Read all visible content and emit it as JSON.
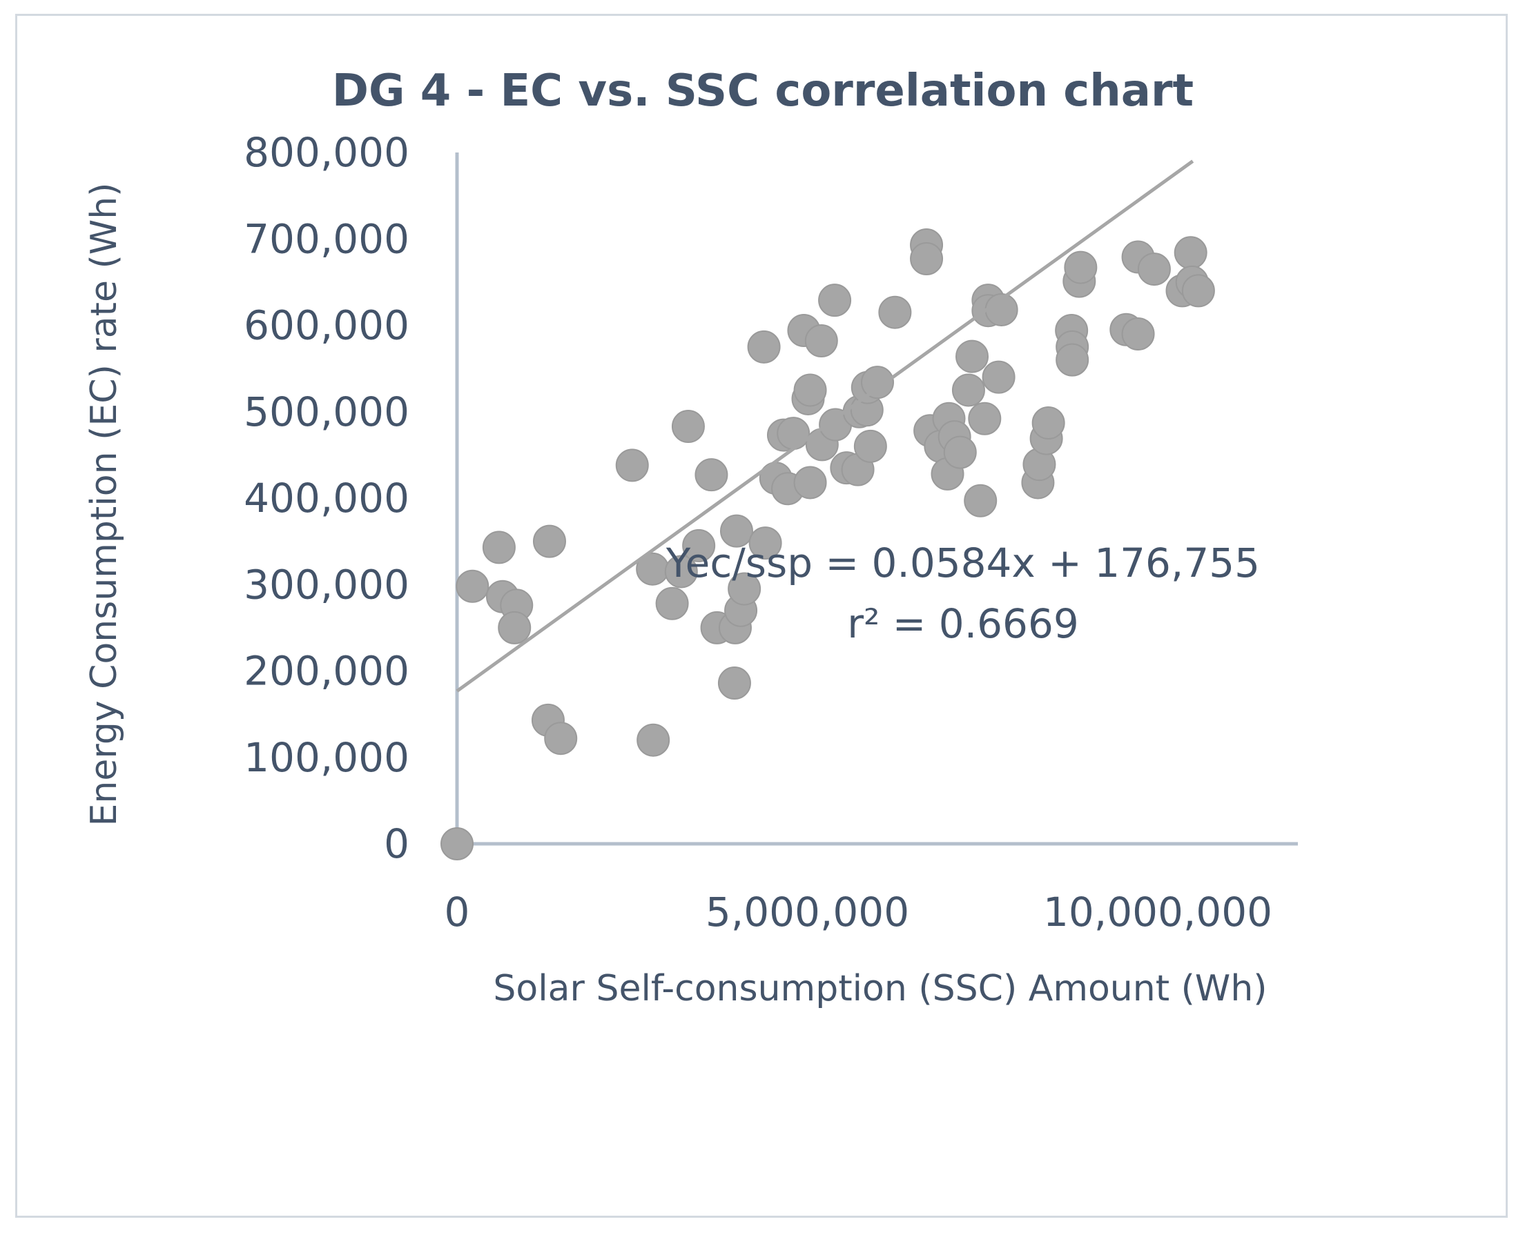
{
  "chart_data": {
    "type": "scatter",
    "title": "DG 4 - EC vs. SSC correlation chart",
    "xlabel": "Solar Self-consumption (SSC) Amount  (Wh)",
    "ylabel": "Energy Consumption (EC) rate (Wh)",
    "xlim": [
      0,
      12000000
    ],
    "ylim": [
      0,
      800000
    ],
    "x_ticks": [
      0,
      5000000,
      10000000
    ],
    "x_tick_labels": [
      "0",
      "5,000,000",
      "10,000,000"
    ],
    "y_ticks": [
      0,
      100000,
      200000,
      300000,
      400000,
      500000,
      600000,
      700000,
      800000
    ],
    "y_tick_labels": [
      "0",
      "100,000",
      "200,000",
      "300,000",
      "400,000",
      "500,000",
      "600,000",
      "700,000",
      "800,000"
    ],
    "grid": false,
    "legend": "none",
    "colors": {
      "marker": "#a6a6a6",
      "trendline": "#a6a6a6",
      "axis": "#b4bfcc",
      "text": "#44546a",
      "frame": "#d3d9e0"
    },
    "series": [
      {
        "name": "DG 4",
        "points": [
          [
            0,
            0
          ],
          [
            220000,
            298000
          ],
          [
            600000,
            343000
          ],
          [
            650000,
            286000
          ],
          [
            850000,
            276000
          ],
          [
            820000,
            250000
          ],
          [
            1320000,
            350000
          ],
          [
            1300000,
            143000
          ],
          [
            1480000,
            122000
          ],
          [
            2500000,
            438000
          ],
          [
            2800000,
            120000
          ],
          [
            2790000,
            318000
          ],
          [
            3200000,
            315000
          ],
          [
            3070000,
            278000
          ],
          [
            3300000,
            483000
          ],
          [
            3450000,
            345000
          ],
          [
            3630000,
            427000
          ],
          [
            3710000,
            250000
          ],
          [
            3990000,
            362000
          ],
          [
            3970000,
            250000
          ],
          [
            4050000,
            270000
          ],
          [
            4100000,
            295000
          ],
          [
            3960000,
            186000
          ],
          [
            4380000,
            575000
          ],
          [
            4400000,
            348000
          ],
          [
            4550000,
            423000
          ],
          [
            4660000,
            473000
          ],
          [
            4720000,
            411000
          ],
          [
            4800000,
            475000
          ],
          [
            4950000,
            594000
          ],
          [
            5010000,
            515000
          ],
          [
            5040000,
            525000
          ],
          [
            5040000,
            418000
          ],
          [
            5200000,
            582000
          ],
          [
            5210000,
            462000
          ],
          [
            5390000,
            629000
          ],
          [
            5400000,
            485000
          ],
          [
            5560000,
            435000
          ],
          [
            5720000,
            433000
          ],
          [
            5740000,
            500000
          ],
          [
            5850000,
            502000
          ],
          [
            5900000,
            460000
          ],
          [
            5860000,
            528000
          ],
          [
            6000000,
            534000
          ],
          [
            6250000,
            615000
          ],
          [
            6700000,
            693000
          ],
          [
            6700000,
            677000
          ],
          [
            6750000,
            478000
          ],
          [
            6900000,
            460000
          ],
          [
            7000000,
            428000
          ],
          [
            7020000,
            492000
          ],
          [
            7100000,
            471000
          ],
          [
            7180000,
            453000
          ],
          [
            7300000,
            525000
          ],
          [
            7350000,
            564000
          ],
          [
            7470000,
            397000
          ],
          [
            7530000,
            492000
          ],
          [
            7580000,
            629000
          ],
          [
            7580000,
            617000
          ],
          [
            7730000,
            540000
          ],
          [
            7770000,
            618000
          ],
          [
            8290000,
            418000
          ],
          [
            8310000,
            439000
          ],
          [
            8410000,
            469000
          ],
          [
            8440000,
            487000
          ],
          [
            8770000,
            594000
          ],
          [
            8780000,
            575000
          ],
          [
            8780000,
            560000
          ],
          [
            8880000,
            651000
          ],
          [
            8900000,
            667000
          ],
          [
            9550000,
            595000
          ],
          [
            9720000,
            590000
          ],
          [
            9720000,
            679000
          ],
          [
            9950000,
            665000
          ],
          [
            10350000,
            640000
          ],
          [
            10470000,
            684000
          ],
          [
            10490000,
            650000
          ],
          [
            10580000,
            640000
          ]
        ]
      }
    ],
    "trendline": {
      "slope": 0.0584,
      "intercept": 176755,
      "x_range": [
        0,
        10500000
      ]
    },
    "annotations": [
      "Yec/ssp = 0.0584x + 176,755",
      "r² = 0.6669"
    ]
  }
}
